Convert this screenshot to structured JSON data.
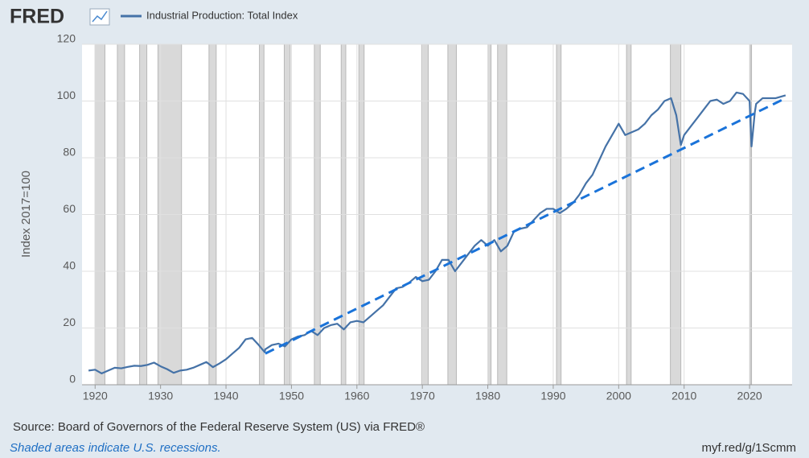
{
  "chart_data": {
    "type": "line",
    "brand": "FRED",
    "ylabel": "Index 2017=100",
    "source": "Source: Board of Governors of the Federal Reserve System (US) via FRED®",
    "note": "Shaded areas indicate U.S. recessions.",
    "url": "myf.red/g/1Scmm",
    "xlim": [
      1918,
      2026.5
    ],
    "ylim": [
      0,
      120
    ],
    "xticks": [
      1920,
      1930,
      1940,
      1950,
      1960,
      1970,
      1980,
      1990,
      2000,
      2010,
      2020
    ],
    "yticks": [
      0,
      20,
      40,
      60,
      80,
      100,
      120
    ],
    "grid": true,
    "x": [
      1919,
      1920,
      1921,
      1922,
      1923,
      1924,
      1925,
      1926,
      1927,
      1928,
      1929,
      1930,
      1931,
      1932,
      1933,
      1934,
      1935,
      1936,
      1937,
      1938,
      1939,
      1940,
      1941,
      1942,
      1943,
      1944,
      1945,
      1945.9,
      1946,
      1947,
      1948,
      1949,
      1950,
      1951,
      1952,
      1953,
      1954,
      1955,
      1956,
      1957,
      1958,
      1959,
      1960,
      1961,
      1962,
      1963,
      1964,
      1965,
      1966,
      1967,
      1968,
      1969,
      1970,
      1971,
      1972,
      1973,
      1974,
      1975,
      1976,
      1977,
      1978,
      1979,
      1980,
      1981,
      1982,
      1983,
      1984,
      1985,
      1986,
      1987,
      1988,
      1989,
      1990,
      1991,
      1992,
      1993,
      1994,
      1995,
      1996,
      1997,
      1998,
      1999,
      2000,
      2001,
      2002,
      2003,
      2004,
      2005,
      2006,
      2007,
      2008,
      2008.8,
      2009.5,
      2010,
      2011,
      2012,
      2013,
      2014,
      2015,
      2016,
      2017,
      2018,
      2019,
      2020,
      2020.3,
      2020.8,
      2021,
      2022,
      2023,
      2024,
      2025.5
    ],
    "series": [
      {
        "name": "Industrial Production: Total Index",
        "color": "#4572a7",
        "values": [
          5,
          5.3,
          4,
          5,
          6,
          5.8,
          6.3,
          6.7,
          6.6,
          7,
          7.8,
          6.5,
          5.5,
          4.2,
          5,
          5.3,
          6,
          7,
          8,
          6.2,
          7.5,
          9,
          11,
          13,
          16,
          16.5,
          14,
          11.5,
          12.5,
          14,
          14.5,
          13.5,
          16,
          17,
          17.5,
          19,
          17.5,
          20,
          21,
          21.5,
          19.5,
          22,
          22.5,
          22,
          24,
          26,
          28,
          31,
          34,
          34.5,
          36,
          38,
          36.5,
          37,
          40,
          44,
          44,
          40,
          43,
          46,
          49,
          51,
          49,
          51,
          47,
          49,
          54,
          55,
          55.5,
          58,
          60.5,
          62,
          62,
          60.5,
          62,
          64,
          67,
          71,
          74,
          79,
          84,
          88,
          92,
          88,
          89,
          90,
          92,
          95,
          97,
          100,
          101,
          95,
          84.5,
          88,
          91,
          94,
          97,
          100,
          100.5,
          99,
          100,
          103,
          102.5,
          100,
          84,
          96,
          99,
          101,
          101,
          101,
          102
        ]
      }
    ],
    "trend_line": {
      "x": [
        1946,
        2025.5
      ],
      "values": [
        11,
        101
      ],
      "color": "#1a73d9"
    },
    "recessions": [
      [
        1920,
        1921.5
      ],
      [
        1923.4,
        1924.5
      ],
      [
        1926.8,
        1927.9
      ],
      [
        1929.6,
        1933.2
      ],
      [
        1937.4,
        1938.5
      ],
      [
        1945.1,
        1945.8
      ],
      [
        1948.9,
        1949.8
      ],
      [
        1953.5,
        1954.4
      ],
      [
        1957.6,
        1958.3
      ],
      [
        1960.3,
        1961.1
      ],
      [
        1969.9,
        1970.9
      ],
      [
        1973.9,
        1975.2
      ],
      [
        1980,
        1980.5
      ],
      [
        1981.5,
        1982.9
      ],
      [
        1990.5,
        1991.2
      ],
      [
        2001.2,
        2001.9
      ],
      [
        2007.9,
        2009.5
      ],
      [
        2020.1,
        2020.3
      ]
    ]
  }
}
